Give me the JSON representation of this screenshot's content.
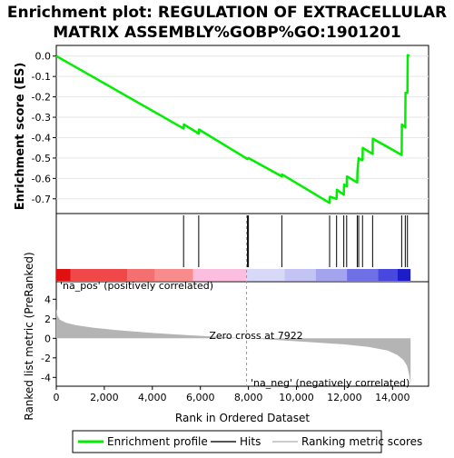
{
  "chart_data": {
    "type": "line",
    "title_line1": "Enrichment plot: REGULATION OF EXTRACELLULAR",
    "title_line2": "MATRIX ASSEMBLY%GOBP%GO:1901201",
    "top_panel": {
      "ylabel": "Enrichment score (ES)",
      "ylim": [
        -0.75,
        0.03
      ],
      "yticks": [
        0.0,
        -0.1,
        -0.2,
        -0.3,
        -0.4,
        -0.5,
        -0.6,
        -0.7
      ],
      "ytick_labels": [
        "0.0",
        "-0.1",
        "-0.2",
        "-0.3",
        "-0.4",
        "-0.5",
        "-0.6",
        "-0.7"
      ],
      "series": {
        "name": "Enrichment profile",
        "color": "#00ee00",
        "x": [
          0,
          5300,
          5310,
          5930,
          5940,
          7960,
          8000,
          9390,
          9400,
          11380,
          11390,
          11670,
          11680,
          11970,
          11980,
          12090,
          12100,
          12530,
          12540,
          12590,
          12600,
          12750,
          12760,
          13170,
          13180,
          14380,
          14390,
          14530,
          14540,
          14620,
          14630,
          14700
        ],
        "y": [
          0.0,
          -0.355,
          -0.335,
          -0.38,
          -0.36,
          -0.505,
          -0.5,
          -0.59,
          -0.58,
          -0.72,
          -0.69,
          -0.7,
          -0.655,
          -0.68,
          -0.63,
          -0.64,
          -0.59,
          -0.62,
          -0.565,
          -0.5,
          -0.505,
          -0.51,
          -0.45,
          -0.48,
          -0.405,
          -0.485,
          -0.335,
          -0.35,
          -0.18,
          -0.18,
          0.005,
          0.0
        ]
      }
    },
    "hits_panel": {
      "color": "#000000",
      "hits": [
        5300,
        5930,
        7960,
        8000,
        9390,
        11380,
        11670,
        11970,
        12090,
        12530,
        12590,
        12750,
        13170,
        14380,
        14530,
        14620
      ]
    },
    "rank_bar": {
      "segments": [
        {
          "from": 0,
          "to": 600,
          "color": "#e01010"
        },
        {
          "from": 600,
          "to": 2950,
          "color": "#f04848"
        },
        {
          "from": 2950,
          "to": 4100,
          "color": "#f47070"
        },
        {
          "from": 4100,
          "to": 5700,
          "color": "#f88c8c"
        },
        {
          "from": 5700,
          "to": 7922,
          "color": "#fbbedf"
        },
        {
          "from": 7922,
          "to": 9500,
          "color": "#d8d8f8"
        },
        {
          "from": 9500,
          "to": 10800,
          "color": "#c4c4f4"
        },
        {
          "from": 10800,
          "to": 12100,
          "color": "#a4a4ee"
        },
        {
          "from": 12100,
          "to": 13400,
          "color": "#6f6fe6"
        },
        {
          "from": 13400,
          "to": 14200,
          "color": "#4848de"
        },
        {
          "from": 14200,
          "to": 14750,
          "color": "#1c1cc8"
        }
      ]
    },
    "bottom_panel": {
      "ylabel": "Ranked list metric (PreRanked)",
      "xlabel": "Rank in Ordered Dataset",
      "ylim": [
        -4.9,
        5.7
      ],
      "yticks": [
        4,
        2,
        0,
        -2,
        -4
      ],
      "ytick_labels": [
        "4",
        "2",
        "0",
        "-2",
        "-4"
      ],
      "xlim": [
        0,
        15500
      ],
      "xticks": [
        0,
        2000,
        4000,
        6000,
        8000,
        10000,
        12000,
        14000
      ],
      "xtick_labels": [
        "0",
        "2,000",
        "4,000",
        "6,000",
        "8,000",
        "10,000",
        "12,000",
        "14,000"
      ],
      "metric_color": "#b4b4b4",
      "metric_curve": {
        "x": [
          0,
          50,
          150,
          400,
          800,
          1500,
          2500,
          4000,
          5500,
          7000,
          7922,
          9000,
          10500,
          12000,
          13000,
          13800,
          14200,
          14450,
          14600,
          14700,
          14750
        ],
        "y": [
          3.0,
          2.3,
          1.9,
          1.6,
          1.35,
          1.1,
          0.85,
          0.55,
          0.32,
          0.12,
          0.0,
          -0.15,
          -0.38,
          -0.62,
          -0.88,
          -1.25,
          -1.7,
          -2.2,
          -2.8,
          -3.8,
          -4.8
        ]
      },
      "zero_cross": 7922,
      "zero_cross_label": "Zero cross at 7922",
      "pos_label": "'na_pos' (positively correlated)",
      "neg_label": "'na_neg' (negatively correlated)",
      "pos_color": "#e01818",
      "neg_color": "#3030d8"
    },
    "legend": {
      "items": [
        {
          "label": "Enrichment profile",
          "color": "#00ee00"
        },
        {
          "label": "Hits",
          "color": "#555555"
        },
        {
          "label": "Ranking metric scores",
          "color": "#cccccc"
        }
      ]
    }
  }
}
